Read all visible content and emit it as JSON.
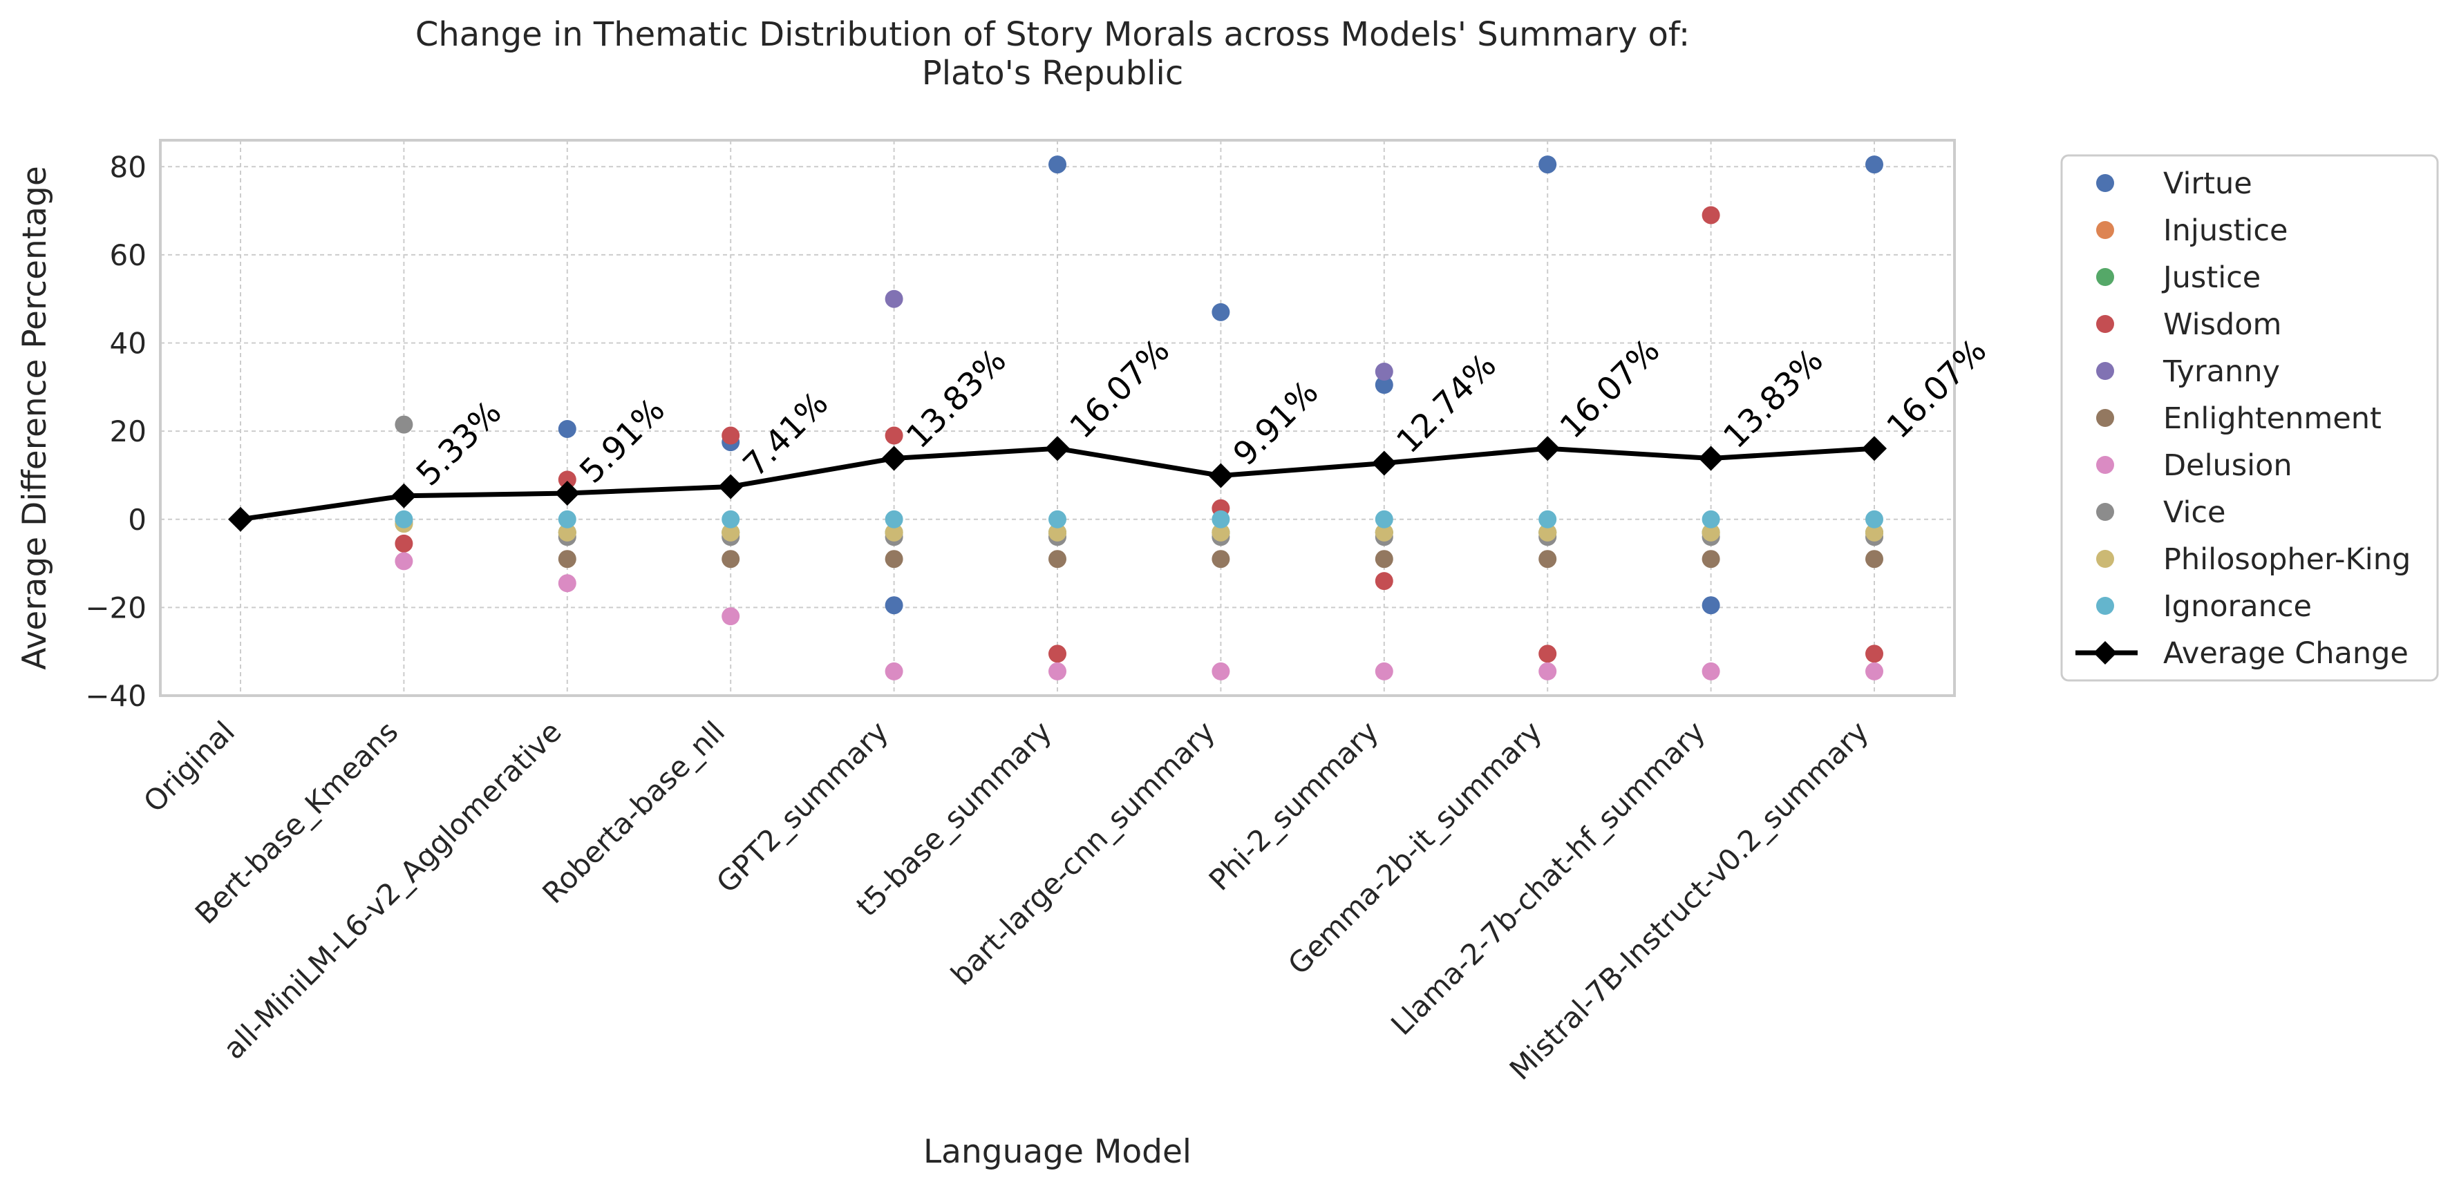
{
  "chart_data": {
    "type": "scatter",
    "title_lines": [
      "Change in Thematic Distribution of Story Morals across Models' Summary of:",
      "Plato's Republic"
    ],
    "xlabel": "Language Model",
    "ylabel": "Average Difference Percentage",
    "ylim": [
      -40,
      86
    ],
    "yticks": [
      -40,
      -20,
      0,
      20,
      40,
      60,
      80
    ],
    "grid": true,
    "legend_position": "outside-right",
    "categories": [
      "Original",
      "Bert-base_Kmeans",
      "all-MiniLM-L6-v2_Agglomerative",
      "Roberta-base_nll",
      "GPT2_summary",
      "t5-base_summary",
      "bart-large-cnn_summary",
      "Phi-2_summary",
      "Gemma-2b-it_summary",
      "Llama-2-7b-chat-hf_summary",
      "Mistral-7B-Instruct-v0.2_summary"
    ],
    "series": [
      {
        "name": "Virtue",
        "color": "#4c72b0",
        "values": [
          null,
          null,
          20.5,
          17.5,
          -19.5,
          80.5,
          47,
          30.5,
          80.5,
          -19.5,
          80.5
        ]
      },
      {
        "name": "Injustice",
        "color": "#dd8452",
        "values": [
          null,
          -0.5,
          -3,
          -3,
          -3,
          -3,
          -3,
          -3,
          -3,
          -3,
          -3
        ]
      },
      {
        "name": "Justice",
        "color": "#55a868",
        "values": [
          null,
          -1,
          -3,
          -3,
          -3,
          -3,
          -3,
          -3,
          -3,
          -3,
          -3
        ]
      },
      {
        "name": "Wisdom",
        "color": "#c44e52",
        "values": [
          null,
          -5.5,
          9,
          19,
          19,
          -30.5,
          2.5,
          -14,
          -30.5,
          69,
          -30.5
        ]
      },
      {
        "name": "Tyranny",
        "color": "#8172b3",
        "values": [
          null,
          null,
          null,
          null,
          50,
          null,
          null,
          33.5,
          null,
          null,
          null
        ]
      },
      {
        "name": "Enlightenment",
        "color": "#937860",
        "values": [
          null,
          null,
          -9,
          -9,
          -9,
          -9,
          -9,
          -9,
          -9,
          -9,
          -9
        ]
      },
      {
        "name": "Delusion",
        "color": "#da8bc3",
        "values": [
          null,
          -9.5,
          -14.5,
          -22,
          -34.5,
          -34.5,
          -34.5,
          -34.5,
          -34.5,
          -34.5,
          -34.5
        ]
      },
      {
        "name": "Vice",
        "color": "#8c8c8c",
        "values": [
          null,
          21.5,
          -4,
          -4,
          -4,
          -4,
          -4,
          -4,
          -4,
          -4,
          -4
        ]
      },
      {
        "name": "Philosopher-King",
        "color": "#ccb974",
        "values": [
          null,
          -1,
          -3,
          -3,
          -3,
          -3,
          -3,
          -3,
          -3,
          -3,
          -3
        ]
      },
      {
        "name": "Ignorance",
        "color": "#64b5cd",
        "values": [
          null,
          0,
          0,
          0,
          0,
          0,
          0,
          0,
          0,
          0,
          0
        ]
      }
    ],
    "average_series": {
      "name": "Average Change",
      "color": "#000000",
      "values": [
        0,
        5.33,
        5.91,
        7.41,
        13.83,
        16.07,
        9.91,
        12.74,
        16.07,
        13.83,
        16.07
      ],
      "labels": [
        "",
        "5.33%",
        "5.91%",
        "7.41%",
        "13.83%",
        "16.07%",
        "9.91%",
        "12.74%",
        "16.07%",
        "13.83%",
        "16.07%"
      ]
    }
  }
}
